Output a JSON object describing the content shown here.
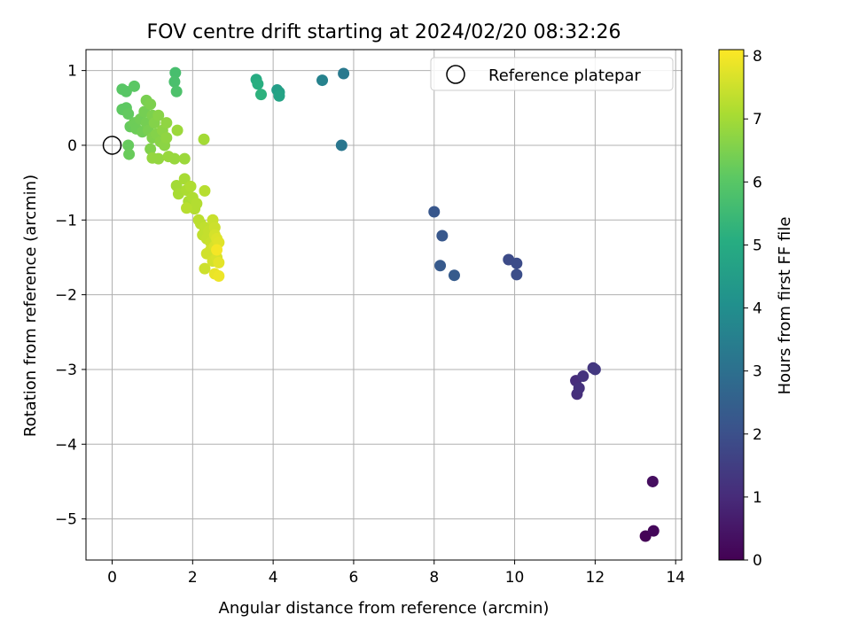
{
  "chart_data": {
    "type": "scatter",
    "title": "FOV centre drift starting at 2024/02/20 08:32:26",
    "xlabel": "Angular distance from reference (arcmin)",
    "ylabel": "Rotation from reference (arcmin)",
    "xlim": [
      -0.65,
      14.15
    ],
    "ylim": [
      -5.55,
      1.28
    ],
    "x_ticks": [
      0,
      2,
      4,
      6,
      8,
      10,
      12,
      14
    ],
    "y_ticks": [
      1,
      0,
      -1,
      -2,
      -3,
      -4,
      -5
    ],
    "grid": true,
    "legend": {
      "placement": "top-right",
      "entries": [
        {
          "label": "Reference platepar",
          "marker": "hollow-circle"
        }
      ]
    },
    "reference_point": {
      "x": 0,
      "y": 0
    },
    "colorbar": {
      "label": "Hours from first FF file",
      "min": 0,
      "max": 8.1,
      "ticks": [
        0,
        1,
        2,
        3,
        4,
        5,
        6,
        7,
        8
      ],
      "colormap": "viridis"
    },
    "points": [
      {
        "x": 13.25,
        "y": -5.23,
        "c": 0.05
      },
      {
        "x": 13.45,
        "y": -5.16,
        "c": 0.15
      },
      {
        "x": 13.43,
        "y": -4.5,
        "c": 0.3
      },
      {
        "x": 11.52,
        "y": -3.15,
        "c": 1.05
      },
      {
        "x": 11.55,
        "y": -3.33,
        "c": 1.1
      },
      {
        "x": 11.6,
        "y": -3.25,
        "c": 1.15
      },
      {
        "x": 11.7,
        "y": -3.09,
        "c": 1.2
      },
      {
        "x": 11.95,
        "y": -2.98,
        "c": 1.3
      },
      {
        "x": 12.0,
        "y": -3.0,
        "c": 1.35
      },
      {
        "x": 9.85,
        "y": -1.53,
        "c": 1.85
      },
      {
        "x": 10.05,
        "y": -1.58,
        "c": 1.9
      },
      {
        "x": 10.05,
        "y": -1.73,
        "c": 1.95
      },
      {
        "x": 8.0,
        "y": -0.89,
        "c": 2.2
      },
      {
        "x": 8.2,
        "y": -1.21,
        "c": 2.25
      },
      {
        "x": 8.15,
        "y": -1.61,
        "c": 2.3
      },
      {
        "x": 8.5,
        "y": -1.74,
        "c": 2.35
      },
      {
        "x": 5.7,
        "y": 0.0,
        "c": 3.2
      },
      {
        "x": 5.75,
        "y": 0.96,
        "c": 3.3
      },
      {
        "x": 5.22,
        "y": 0.87,
        "c": 3.6
      },
      {
        "x": 4.1,
        "y": 0.74,
        "c": 4.5
      },
      {
        "x": 4.15,
        "y": 0.71,
        "c": 4.6
      },
      {
        "x": 4.15,
        "y": 0.66,
        "c": 4.7
      },
      {
        "x": 3.58,
        "y": 0.88,
        "c": 5.0
      },
      {
        "x": 3.62,
        "y": 0.82,
        "c": 5.1
      },
      {
        "x": 3.7,
        "y": 0.68,
        "c": 5.2
      },
      {
        "x": 1.57,
        "y": 0.97,
        "c": 5.7
      },
      {
        "x": 1.55,
        "y": 0.85,
        "c": 5.75
      },
      {
        "x": 1.6,
        "y": 0.72,
        "c": 5.8
      },
      {
        "x": 0.25,
        "y": 0.75,
        "c": 6.0
      },
      {
        "x": 0.35,
        "y": 0.72,
        "c": 6.0
      },
      {
        "x": 0.55,
        "y": 0.79,
        "c": 6.05
      },
      {
        "x": 0.25,
        "y": 0.48,
        "c": 6.1
      },
      {
        "x": 0.35,
        "y": 0.5,
        "c": 6.1
      },
      {
        "x": 0.4,
        "y": 0.42,
        "c": 6.15
      },
      {
        "x": 0.45,
        "y": 0.25,
        "c": 6.2
      },
      {
        "x": 0.4,
        "y": 0.0,
        "c": 6.2
      },
      {
        "x": 0.42,
        "y": -0.12,
        "c": 6.25
      },
      {
        "x": 0.55,
        "y": 0.3,
        "c": 6.3
      },
      {
        "x": 0.6,
        "y": 0.22,
        "c": 6.3
      },
      {
        "x": 0.7,
        "y": 0.35,
        "c": 6.35
      },
      {
        "x": 0.75,
        "y": 0.18,
        "c": 6.35
      },
      {
        "x": 0.8,
        "y": 0.45,
        "c": 6.4
      },
      {
        "x": 0.85,
        "y": 0.3,
        "c": 6.4
      },
      {
        "x": 0.85,
        "y": 0.6,
        "c": 6.45
      },
      {
        "x": 0.9,
        "y": 0.2,
        "c": 6.45
      },
      {
        "x": 0.95,
        "y": 0.55,
        "c": 6.5
      },
      {
        "x": 1.0,
        "y": 0.4,
        "c": 6.5
      },
      {
        "x": 1.0,
        "y": 0.1,
        "c": 6.55
      },
      {
        "x": 0.95,
        "y": -0.05,
        "c": 6.55
      },
      {
        "x": 1.05,
        "y": 0.3,
        "c": 6.6
      },
      {
        "x": 1.1,
        "y": 0.15,
        "c": 6.6
      },
      {
        "x": 1.15,
        "y": 0.4,
        "c": 6.65
      },
      {
        "x": 1.2,
        "y": 0.05,
        "c": 6.65
      },
      {
        "x": 1.25,
        "y": 0.2,
        "c": 6.7
      },
      {
        "x": 1.3,
        "y": 0.0,
        "c": 6.7
      },
      {
        "x": 1.35,
        "y": 0.1,
        "c": 6.75
      },
      {
        "x": 1.35,
        "y": 0.3,
        "c": 6.75
      },
      {
        "x": 1.0,
        "y": -0.17,
        "c": 6.8
      },
      {
        "x": 1.15,
        "y": -0.18,
        "c": 6.8
      },
      {
        "x": 1.4,
        "y": -0.15,
        "c": 6.85
      },
      {
        "x": 1.55,
        "y": -0.18,
        "c": 6.85
      },
      {
        "x": 1.62,
        "y": 0.2,
        "c": 6.9
      },
      {
        "x": 1.8,
        "y": -0.18,
        "c": 6.9
      },
      {
        "x": 2.28,
        "y": 0.08,
        "c": 7.0
      },
      {
        "x": 1.6,
        "y": -0.54,
        "c": 7.0
      },
      {
        "x": 1.65,
        "y": -0.65,
        "c": 7.05
      },
      {
        "x": 1.8,
        "y": -0.45,
        "c": 7.05
      },
      {
        "x": 1.85,
        "y": -0.6,
        "c": 7.1
      },
      {
        "x": 1.9,
        "y": -0.75,
        "c": 7.1
      },
      {
        "x": 1.95,
        "y": -0.55,
        "c": 7.15
      },
      {
        "x": 2.0,
        "y": -0.7,
        "c": 7.15
      },
      {
        "x": 2.05,
        "y": -0.85,
        "c": 7.2
      },
      {
        "x": 2.1,
        "y": -0.78,
        "c": 7.2
      },
      {
        "x": 2.3,
        "y": -0.61,
        "c": 7.25
      },
      {
        "x": 1.85,
        "y": -0.84,
        "c": 7.25
      },
      {
        "x": 2.15,
        "y": -1.0,
        "c": 7.3
      },
      {
        "x": 2.2,
        "y": -1.05,
        "c": 7.3
      },
      {
        "x": 2.25,
        "y": -1.2,
        "c": 7.35
      },
      {
        "x": 2.3,
        "y": -1.1,
        "c": 7.35
      },
      {
        "x": 2.35,
        "y": -1.25,
        "c": 7.4
      },
      {
        "x": 2.4,
        "y": -1.15,
        "c": 7.4
      },
      {
        "x": 2.45,
        "y": -1.3,
        "c": 7.45
      },
      {
        "x": 2.5,
        "y": -1.0,
        "c": 7.45
      },
      {
        "x": 2.55,
        "y": -1.1,
        "c": 7.5
      },
      {
        "x": 2.3,
        "y": -1.65,
        "c": 7.5
      },
      {
        "x": 2.35,
        "y": -1.45,
        "c": 7.55
      },
      {
        "x": 2.45,
        "y": -1.4,
        "c": 7.55
      },
      {
        "x": 2.5,
        "y": -1.55,
        "c": 7.6
      },
      {
        "x": 2.55,
        "y": -1.2,
        "c": 7.6
      },
      {
        "x": 2.55,
        "y": -1.35,
        "c": 7.65
      },
      {
        "x": 2.6,
        "y": -1.5,
        "c": 7.65
      },
      {
        "x": 2.6,
        "y": -1.25,
        "c": 7.7
      },
      {
        "x": 2.65,
        "y": -1.3,
        "c": 7.75
      },
      {
        "x": 2.65,
        "y": -1.57,
        "c": 7.8
      },
      {
        "x": 2.55,
        "y": -1.72,
        "c": 7.85
      },
      {
        "x": 2.65,
        "y": -1.75,
        "c": 7.9
      },
      {
        "x": 2.6,
        "y": -1.4,
        "c": 8.0
      }
    ]
  }
}
